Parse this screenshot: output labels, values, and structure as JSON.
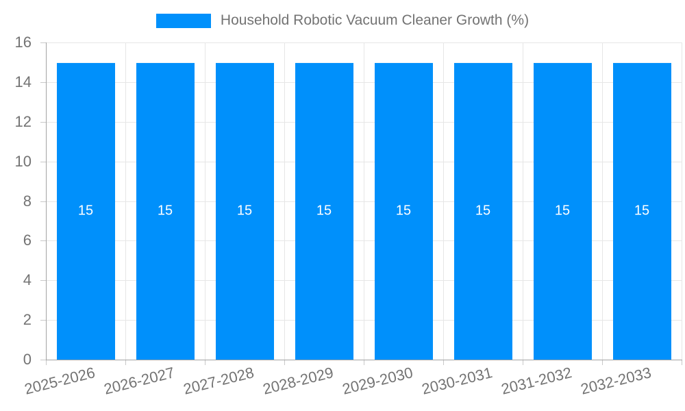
{
  "legend": {
    "label": "Household Robotic Vacuum Cleaner Growth (%)",
    "swatch_color": "#0090FB"
  },
  "chart_data": {
    "type": "bar",
    "title": "Household Robotic Vacuum Cleaner Growth (%)",
    "categories": [
      "2025-2026",
      "2026-2027",
      "2027-2028",
      "2028-2029",
      "2029-2030",
      "2030-2031",
      "2031-2032",
      "2032-2033"
    ],
    "series": [
      {
        "name": "Household Robotic Vacuum Cleaner Growth (%)",
        "values": [
          15,
          15,
          15,
          15,
          15,
          15,
          15,
          15
        ]
      }
    ],
    "data_labels": [
      "15",
      "15",
      "15",
      "15",
      "15",
      "15",
      "15",
      "15"
    ],
    "xlabel": "",
    "ylabel": "",
    "ylim": [
      0,
      16
    ],
    "yticks": [
      0,
      2,
      4,
      6,
      8,
      10,
      12,
      14,
      16
    ],
    "grid": true,
    "legend_position": "top"
  },
  "colors": {
    "bar": "#0090FB",
    "value_label": "#ffffff",
    "axis_text": "#737373",
    "grid_line": "#e6e6e6",
    "axis_line": "#a3a3a3",
    "tick_mark": "#c8c8c8",
    "background": "#ffffff"
  }
}
